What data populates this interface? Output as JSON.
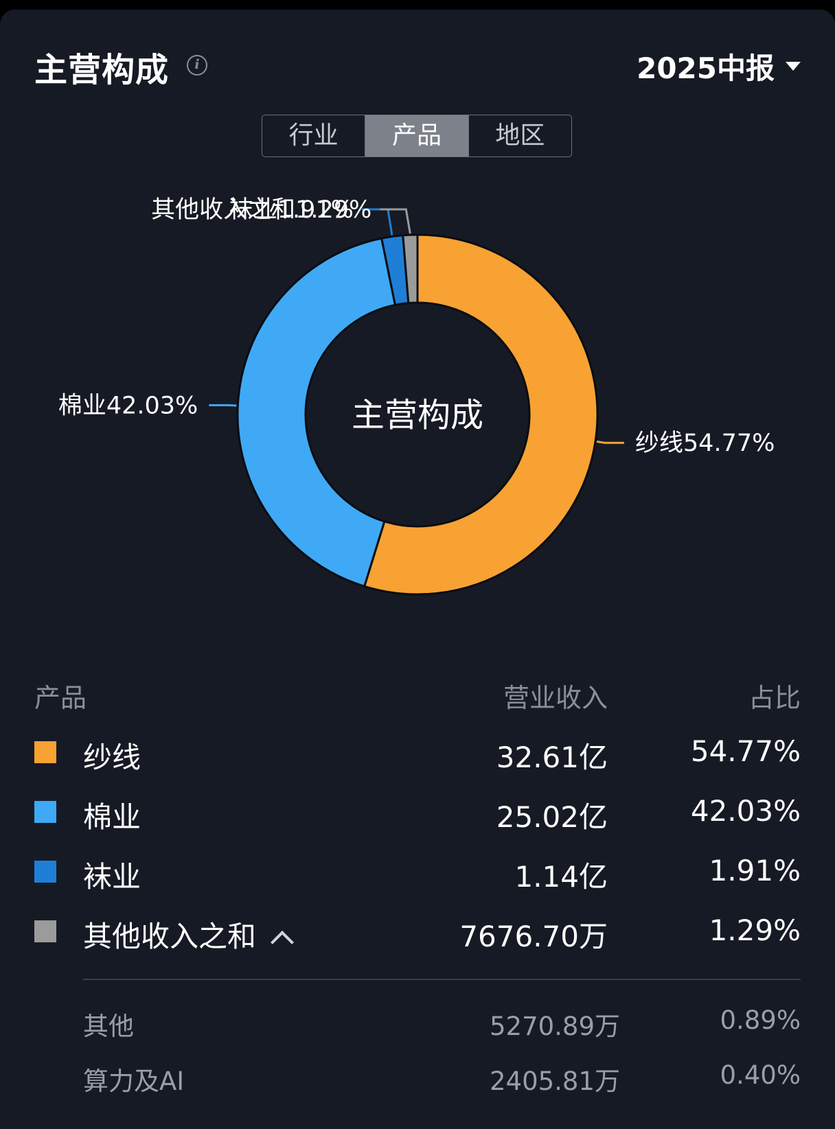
{
  "header": {
    "title": "主营构成",
    "info_icon": "info-icon",
    "period": "2025中报",
    "period_icon": "caret-down-icon"
  },
  "tabs": [
    {
      "label": "行业",
      "active": false
    },
    {
      "label": "产品",
      "active": true
    },
    {
      "label": "地区",
      "active": false
    }
  ],
  "chart_data": {
    "type": "pie",
    "donut": true,
    "center_label": "主营构成",
    "slices": [
      {
        "name": "纱线",
        "percent": 54.77,
        "label": "纱线54.77%",
        "color": "#f7a233"
      },
      {
        "name": "棉业",
        "percent": 42.03,
        "label": "棉业42.03%",
        "color": "#3fa9f5"
      },
      {
        "name": "袜业",
        "percent": 1.91,
        "label": "袜业1.91%",
        "color": "#1f7fd6"
      },
      {
        "name": "其他收入之和",
        "percent": 1.29,
        "label": "其他收入之和1.29%",
        "color": "#9b9b9b"
      }
    ]
  },
  "table": {
    "headers": {
      "name": "产品",
      "revenue": "营业收入",
      "share": "占比"
    },
    "rows": [
      {
        "name": "纱线",
        "revenue": "32.61亿",
        "share": "54.77%",
        "color": "#f7a233"
      },
      {
        "name": "棉业",
        "revenue": "25.02亿",
        "share": "42.03%",
        "color": "#3fa9f5"
      },
      {
        "name": "袜业",
        "revenue": "1.14亿",
        "share": "1.91%",
        "color": "#1f7fd6"
      },
      {
        "name": "其他收入之和",
        "revenue": "7676.70万",
        "share": "1.29%",
        "color": "#9b9b9b",
        "expand_icon": "chevron-up-icon"
      }
    ],
    "sub_rows": [
      {
        "name": "其他",
        "revenue": "5270.89万",
        "share": "0.89%"
      },
      {
        "name": "算力及AI",
        "revenue": "2405.81万",
        "share": "0.40%"
      }
    ]
  }
}
